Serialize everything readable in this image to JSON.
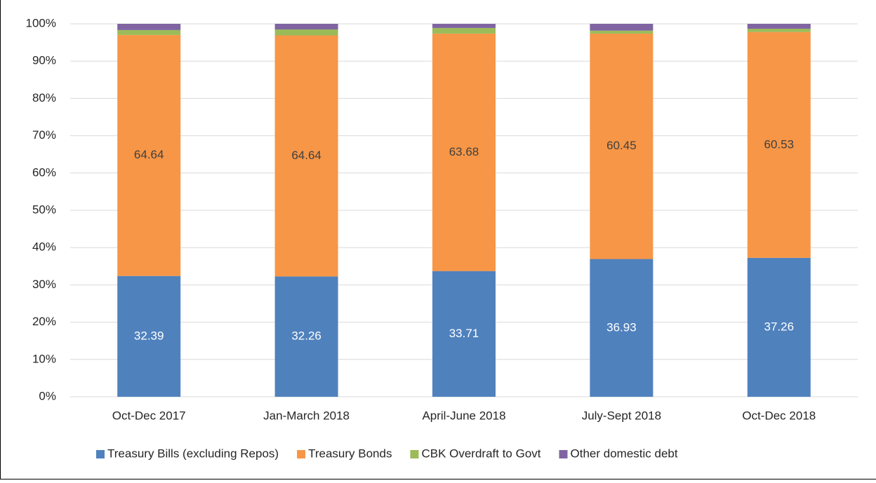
{
  "chart_data": {
    "type": "stacked-bar",
    "categories": [
      "Oct-Dec 2017",
      "Jan-March 2018",
      "April-June 2018",
      "July-Sept 2018",
      "Oct-Dec 2018"
    ],
    "series": [
      {
        "name": "Treasury Bills (excluding Repos)",
        "color": "#4f81bd",
        "values": [
          32.39,
          32.26,
          33.71,
          36.93,
          37.26
        ],
        "labeled": true,
        "label_color": "#ffffff"
      },
      {
        "name": "Treasury Bonds",
        "color": "#f79646",
        "values": [
          64.64,
          64.64,
          63.68,
          60.45,
          60.53
        ],
        "labeled": true,
        "label_color": "#404040"
      },
      {
        "name": "CBK Overdraft to Govt",
        "color": "#9bbb59",
        "values": [
          1.3,
          1.6,
          1.5,
          0.8,
          0.9
        ],
        "labeled": false
      },
      {
        "name": "Other domestic debt",
        "color": "#8064a2",
        "values": [
          1.67,
          1.5,
          1.11,
          1.82,
          1.31
        ],
        "labeled": false
      }
    ],
    "ylim": [
      0,
      100
    ],
    "yticks": [
      {
        "value": 0,
        "label": "0%"
      },
      {
        "value": 10,
        "label": "10%"
      },
      {
        "value": 20,
        "label": "20%"
      },
      {
        "value": 30,
        "label": "30%"
      },
      {
        "value": 40,
        "label": "40%"
      },
      {
        "value": 50,
        "label": "50%"
      },
      {
        "value": 60,
        "label": "60%"
      },
      {
        "value": 70,
        "label": "70%"
      },
      {
        "value": 80,
        "label": "80%"
      },
      {
        "value": 90,
        "label": "90%"
      },
      {
        "value": 100,
        "label": "100%"
      }
    ],
    "grid": true,
    "legend": "bottom"
  }
}
